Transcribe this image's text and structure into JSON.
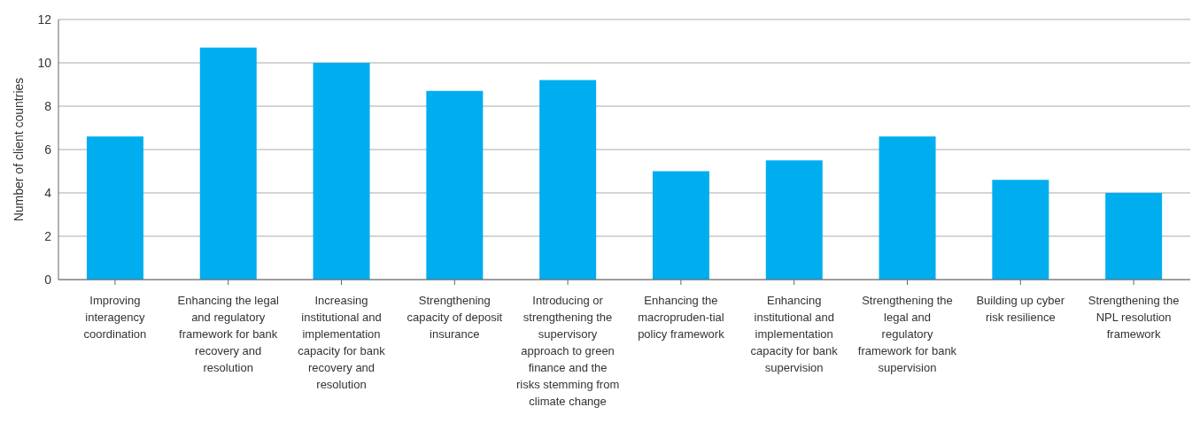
{
  "chart_data": {
    "type": "bar",
    "ylabel": "Number of client countries",
    "categories": [
      "Improving interagency coordination",
      "Enhancing the legal and regulatory framework for bank recovery and resolution",
      "Increasing institutional and implementation capacity for bank recovery and resolution",
      "Strengthening capacity of deposit insurance",
      "Introducing or strengthening the supervisory approach to green finance and the risks stemming from climate change",
      "Enhancing the macropruden-tial policy framework",
      "Enhancing institutional and implementation capacity for bank supervision",
      "Strengthening the legal and regulatory framework for bank supervision",
      "Building up cyber risk resilience",
      "Strengthening the NPL resolution framework"
    ],
    "values": [
      6.6,
      10.7,
      10,
      8.7,
      9.2,
      5,
      5.5,
      6.6,
      4.6,
      4
    ],
    "color": "#00aeef",
    "ylim": [
      0,
      12
    ],
    "yticks": [
      0,
      2,
      4,
      6,
      8,
      10,
      12
    ],
    "grid": "y",
    "legend": false
  }
}
